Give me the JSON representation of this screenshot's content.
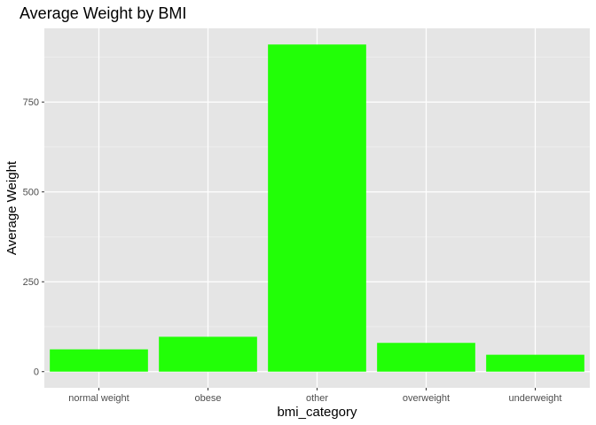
{
  "chart_data": {
    "type": "bar",
    "title": "Average Weight by BMI",
    "xlabel": "bmi_category",
    "ylabel": "Average Weight",
    "categories": [
      "normal weight",
      "obese",
      "other",
      "overweight",
      "underweight"
    ],
    "values": [
      62,
      97,
      910,
      80,
      47
    ],
    "ylim": [
      -45,
      955
    ],
    "yticks": [
      0,
      250,
      500,
      750
    ],
    "grid": true,
    "legend": "none",
    "colors": {
      "bar": "#22FF07",
      "panel_background": "#E5E5E5",
      "grid_major": "#FFFFFF",
      "grid_minor": "#F2F2F2"
    }
  }
}
